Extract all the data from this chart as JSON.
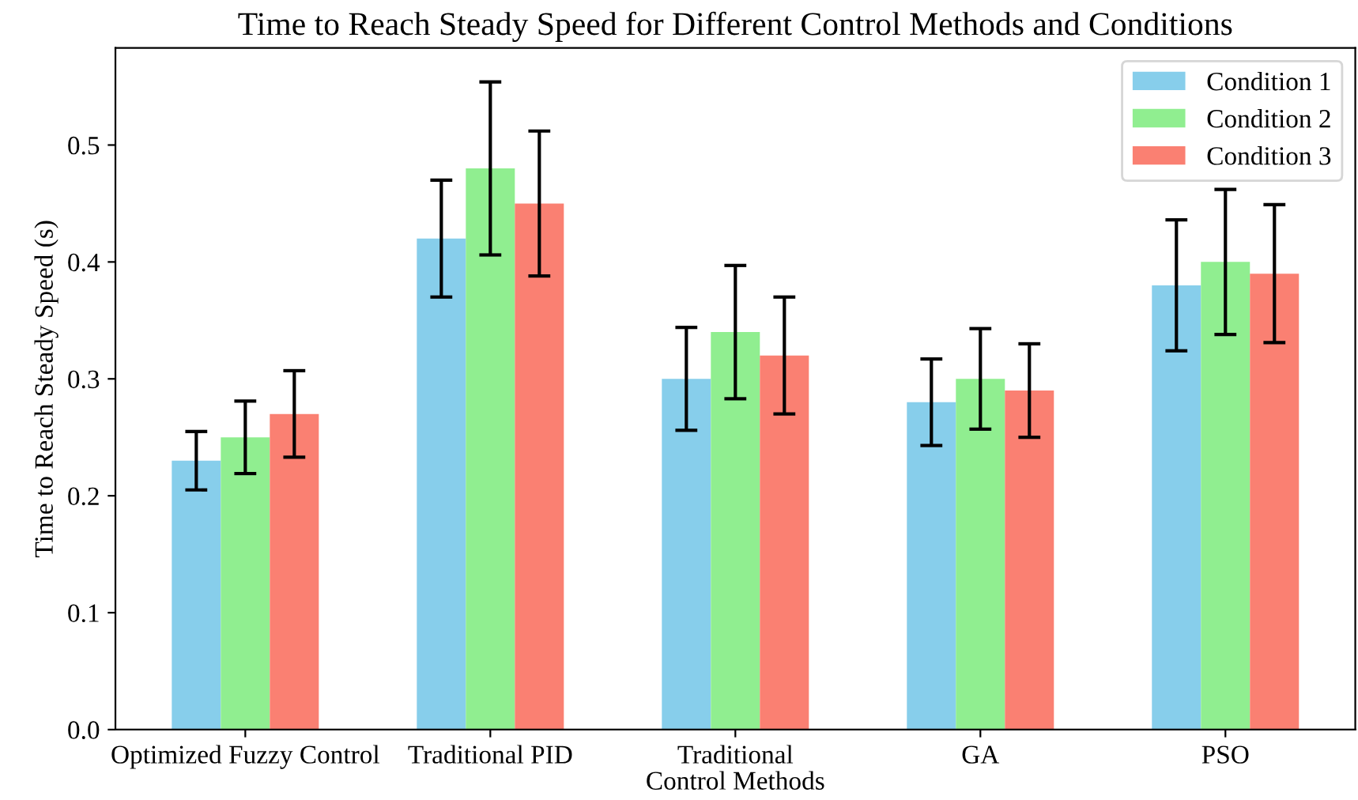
{
  "chart_data": {
    "type": "bar",
    "title": "Time to Reach Steady Speed for Different Control Methods and Conditions",
    "xlabel": "Control Methods",
    "ylabel": "Time to Reach Steady Speed (s)",
    "categories": [
      "Optimized Fuzzy Control",
      "Traditional PID",
      "Traditional",
      "GA",
      "PSO"
    ],
    "series": [
      {
        "name": "Condition 1",
        "color": "#87ceeb",
        "values": [
          0.23,
          0.42,
          0.3,
          0.28,
          0.38
        ],
        "errors": [
          0.025,
          0.05,
          0.044,
          0.037,
          0.056
        ]
      },
      {
        "name": "Condition 2",
        "color": "#90ee90",
        "values": [
          0.25,
          0.48,
          0.34,
          0.3,
          0.4
        ],
        "errors": [
          0.031,
          0.074,
          0.057,
          0.043,
          0.062
        ]
      },
      {
        "name": "Condition 3",
        "color": "#fa8072",
        "values": [
          0.27,
          0.45,
          0.32,
          0.29,
          0.39
        ],
        "errors": [
          0.037,
          0.062,
          0.05,
          0.04,
          0.059
        ]
      }
    ],
    "ylim": [
      0,
      0.583
    ],
    "yticks": [
      {
        "value": 0,
        "label": "0.0"
      },
      0.1,
      0.2,
      0.3,
      0.4,
      0.5
    ],
    "legend": "top right",
    "grid": false
  }
}
